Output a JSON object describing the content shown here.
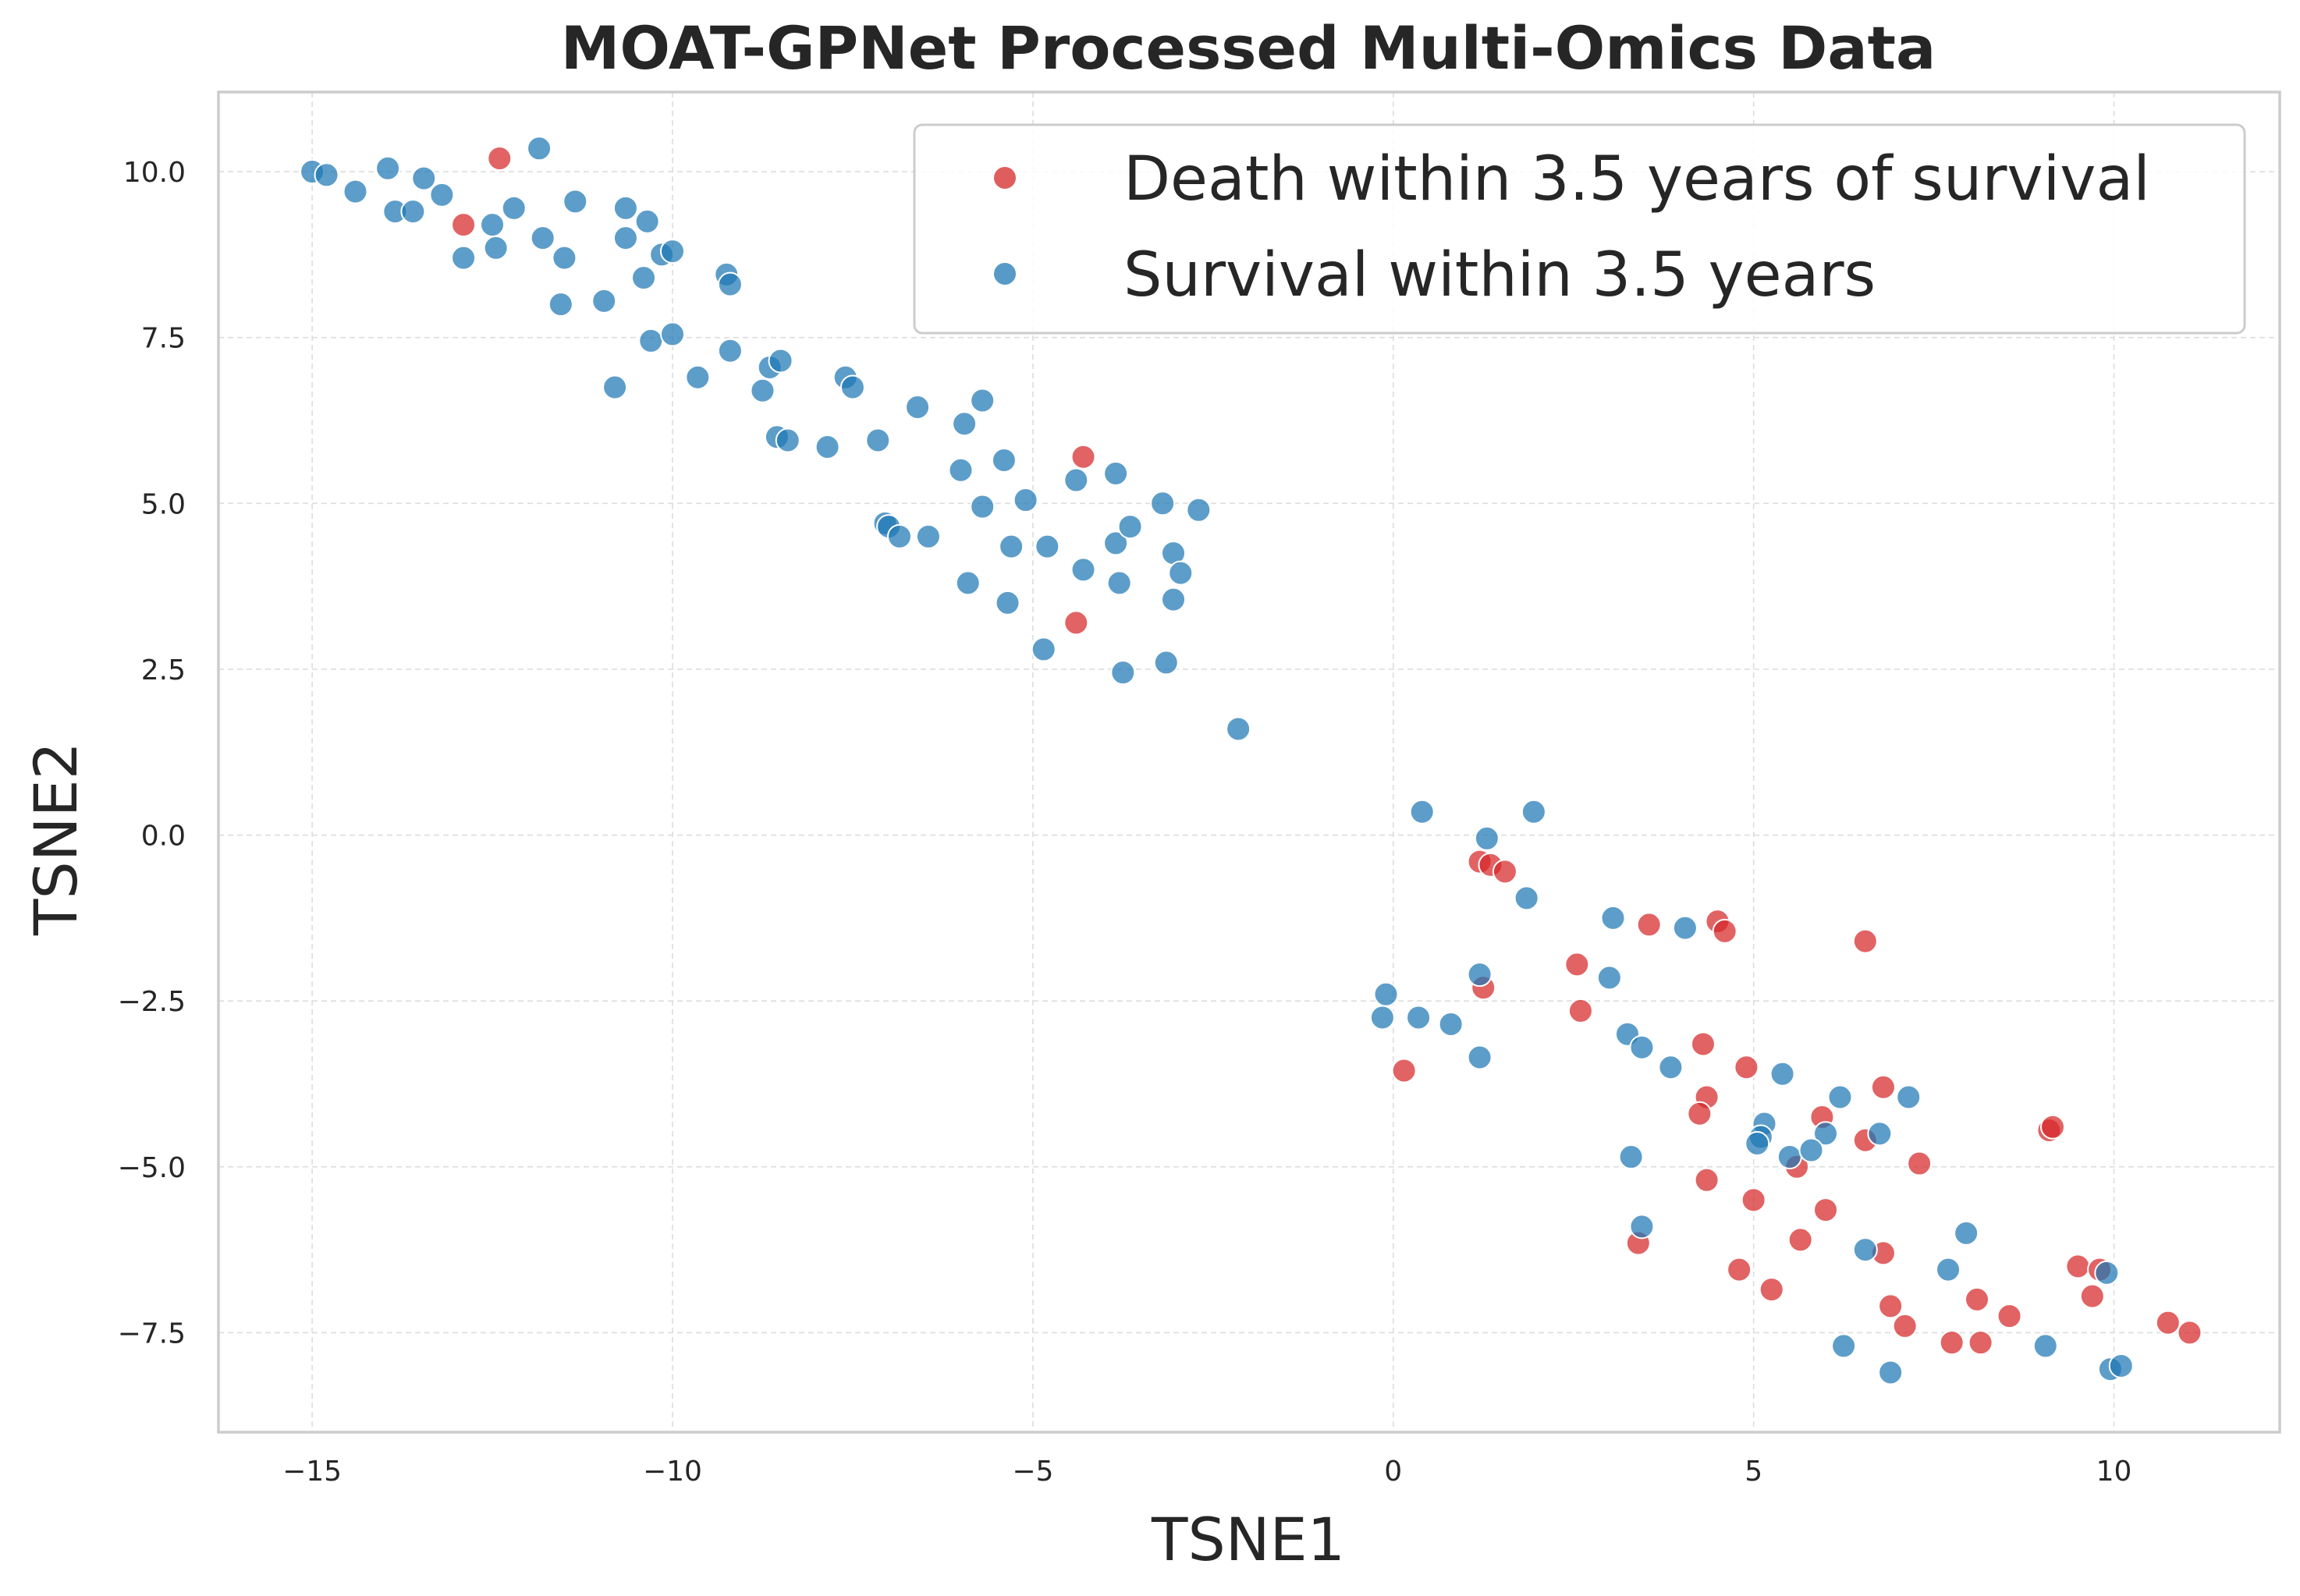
{
  "chart_data": {
    "type": "scatter",
    "title": "MOAT-GPNet Processed Multi-Omics Data",
    "xlabel": "TSNE1",
    "ylabel": "TSNE2",
    "xlim": [
      -16.3,
      12.3
    ],
    "ylim": [
      -9.0,
      11.2
    ],
    "xticks": [
      -15,
      -10,
      -5,
      0,
      5,
      10
    ],
    "xtick_labels": [
      "−15",
      "−10",
      "−5",
      "0",
      "5",
      "10"
    ],
    "yticks": [
      -7.5,
      -5.0,
      -2.5,
      0.0,
      2.5,
      5.0,
      7.5,
      10.0
    ],
    "ytick_labels": [
      "−7.5",
      "−5.0",
      "−2.5",
      "0.0",
      "2.5",
      "5.0",
      "7.5",
      "10.0"
    ],
    "grid": true,
    "legend_position": "top-right",
    "series": [
      {
        "name": "Death within 3.5 years of survival",
        "color": "#d62728",
        "points": [
          [
            -12.4,
            10.2
          ],
          [
            -12.9,
            9.2
          ],
          [
            -4.3,
            5.7
          ],
          [
            -4.4,
            3.2
          ],
          [
            1.2,
            -0.4
          ],
          [
            1.35,
            -0.45
          ],
          [
            1.55,
            -0.55
          ],
          [
            1.25,
            -2.3
          ],
          [
            0.15,
            -3.55
          ],
          [
            2.55,
            -1.95
          ],
          [
            2.6,
            -2.65
          ],
          [
            3.55,
            -1.35
          ],
          [
            4.5,
            -1.3
          ],
          [
            4.6,
            -1.45
          ],
          [
            6.55,
            -1.6
          ],
          [
            4.3,
            -3.15
          ],
          [
            4.9,
            -3.5
          ],
          [
            4.35,
            -3.95
          ],
          [
            4.25,
            -4.2
          ],
          [
            6.8,
            -3.8
          ],
          [
            5.95,
            -4.25
          ],
          [
            6.55,
            -4.6
          ],
          [
            5.6,
            -5.0
          ],
          [
            7.3,
            -4.95
          ],
          [
            9.1,
            -4.45
          ],
          [
            9.15,
            -4.4
          ],
          [
            4.35,
            -5.2
          ],
          [
            5.0,
            -5.5
          ],
          [
            6.0,
            -5.65
          ],
          [
            3.4,
            -6.15
          ],
          [
            5.65,
            -6.1
          ],
          [
            6.8,
            -6.3
          ],
          [
            4.8,
            -6.55
          ],
          [
            5.25,
            -6.85
          ],
          [
            9.5,
            -6.5
          ],
          [
            9.8,
            -6.55
          ],
          [
            9.7,
            -6.95
          ],
          [
            8.1,
            -7.0
          ],
          [
            6.9,
            -7.1
          ],
          [
            7.1,
            -7.4
          ],
          [
            8.55,
            -7.25
          ],
          [
            7.75,
            -7.65
          ],
          [
            8.15,
            -7.65
          ],
          [
            10.75,
            -7.35
          ],
          [
            11.05,
            -7.5
          ]
        ]
      },
      {
        "name": "Survival within 3.5 years",
        "color": "#1f77b4",
        "points": [
          [
            -15.0,
            10.0
          ],
          [
            -14.8,
            9.95
          ],
          [
            -14.4,
            9.7
          ],
          [
            -13.95,
            10.05
          ],
          [
            -13.85,
            9.4
          ],
          [
            -13.6,
            9.4
          ],
          [
            -13.45,
            9.9
          ],
          [
            -13.2,
            9.65
          ],
          [
            -12.5,
            9.2
          ],
          [
            -12.45,
            8.85
          ],
          [
            -12.9,
            8.7
          ],
          [
            -12.2,
            9.45
          ],
          [
            -11.85,
            10.35
          ],
          [
            -11.8,
            9.0
          ],
          [
            -11.35,
            9.55
          ],
          [
            -11.5,
            8.7
          ],
          [
            -11.55,
            8.0
          ],
          [
            -10.65,
            9.45
          ],
          [
            -10.65,
            9.0
          ],
          [
            -10.35,
            9.25
          ],
          [
            -10.15,
            8.75
          ],
          [
            -10.0,
            8.8
          ],
          [
            -10.4,
            8.4
          ],
          [
            -10.95,
            8.05
          ],
          [
            -10.3,
            7.45
          ],
          [
            -10.0,
            7.55
          ],
          [
            -9.25,
            8.45
          ],
          [
            -9.2,
            8.3
          ],
          [
            -9.2,
            7.3
          ],
          [
            -9.65,
            6.9
          ],
          [
            -10.8,
            6.75
          ],
          [
            -8.65,
            7.05
          ],
          [
            -8.5,
            7.15
          ],
          [
            -8.75,
            6.7
          ],
          [
            -7.6,
            6.9
          ],
          [
            -7.5,
            6.75
          ],
          [
            -8.55,
            6.0
          ],
          [
            -8.4,
            5.95
          ],
          [
            -7.85,
            5.85
          ],
          [
            -7.15,
            5.95
          ],
          [
            -6.6,
            6.45
          ],
          [
            -5.7,
            6.55
          ],
          [
            -5.95,
            6.2
          ],
          [
            -6.0,
            5.5
          ],
          [
            -5.4,
            5.65
          ],
          [
            -4.4,
            5.35
          ],
          [
            -3.85,
            5.45
          ],
          [
            -5.7,
            4.95
          ],
          [
            -5.1,
            5.05
          ],
          [
            -3.2,
            5.0
          ],
          [
            -2.7,
            4.9
          ],
          [
            -7.05,
            4.7
          ],
          [
            -7.0,
            4.65
          ],
          [
            -6.85,
            4.5
          ],
          [
            -6.45,
            4.5
          ],
          [
            -5.3,
            4.35
          ],
          [
            -4.8,
            4.35
          ],
          [
            -3.85,
            4.4
          ],
          [
            -3.65,
            4.65
          ],
          [
            -3.05,
            4.25
          ],
          [
            -4.3,
            4.0
          ],
          [
            -2.95,
            3.95
          ],
          [
            -5.9,
            3.8
          ],
          [
            -3.8,
            3.8
          ],
          [
            -5.35,
            3.5
          ],
          [
            -3.05,
            3.55
          ],
          [
            -4.85,
            2.8
          ],
          [
            -3.75,
            2.45
          ],
          [
            -3.15,
            2.6
          ],
          [
            -2.15,
            1.6
          ],
          [
            0.4,
            0.35
          ],
          [
            1.95,
            0.35
          ],
          [
            1.3,
            -0.05
          ],
          [
            1.85,
            -0.95
          ],
          [
            3.05,
            -1.25
          ],
          [
            4.05,
            -1.4
          ],
          [
            1.2,
            -2.1
          ],
          [
            3.0,
            -2.15
          ],
          [
            -0.1,
            -2.4
          ],
          [
            -0.15,
            -2.75
          ],
          [
            0.35,
            -2.75
          ],
          [
            0.8,
            -2.85
          ],
          [
            1.2,
            -3.35
          ],
          [
            3.25,
            -3.0
          ],
          [
            3.45,
            -3.2
          ],
          [
            3.85,
            -3.5
          ],
          [
            5.4,
            -3.6
          ],
          [
            7.15,
            -3.95
          ],
          [
            6.2,
            -3.95
          ],
          [
            5.15,
            -4.35
          ],
          [
            5.1,
            -4.55
          ],
          [
            5.05,
            -4.65
          ],
          [
            6.0,
            -4.5
          ],
          [
            6.75,
            -4.5
          ],
          [
            5.5,
            -4.85
          ],
          [
            5.8,
            -4.75
          ],
          [
            3.3,
            -4.85
          ],
          [
            7.95,
            -6.0
          ],
          [
            3.45,
            -5.9
          ],
          [
            6.55,
            -6.25
          ],
          [
            7.7,
            -6.55
          ],
          [
            9.9,
            -6.6
          ],
          [
            9.05,
            -7.7
          ],
          [
            6.25,
            -7.7
          ],
          [
            6.9,
            -8.1
          ],
          [
            9.95,
            -8.05
          ],
          [
            10.1,
            -8.0
          ]
        ]
      }
    ]
  }
}
